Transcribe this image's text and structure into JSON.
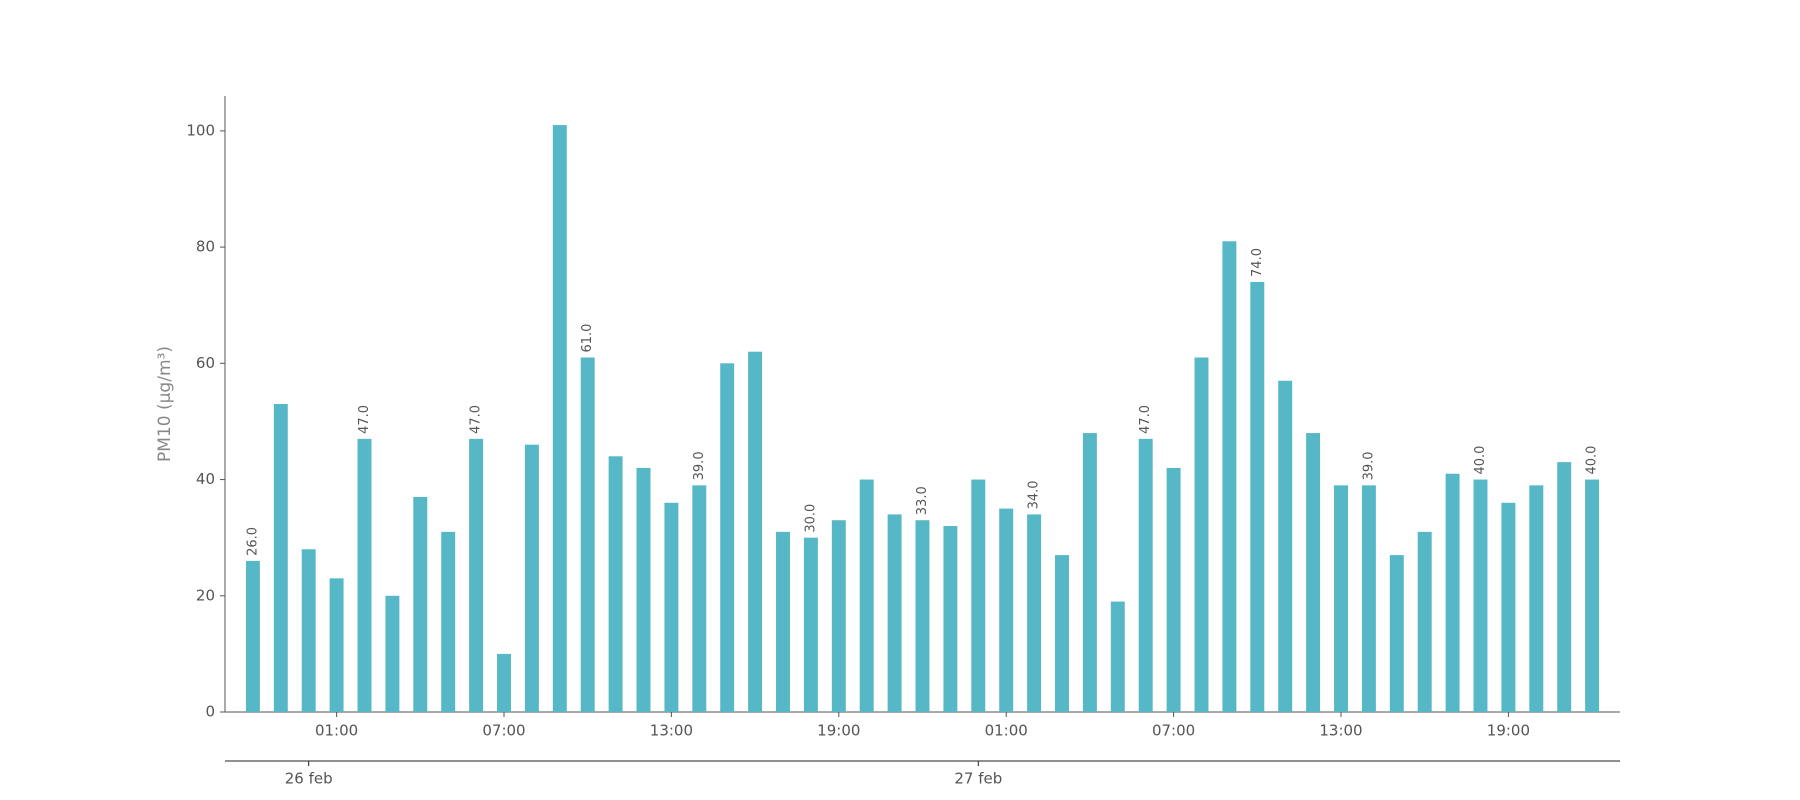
{
  "chart_data": {
    "type": "bar",
    "y_label": "PM10 (μg/m³)",
    "categories": [
      null,
      null,
      null,
      "01:00",
      null,
      null,
      null,
      null,
      null,
      "07:00",
      null,
      null,
      null,
      null,
      null,
      "13:00",
      null,
      null,
      null,
      null,
      null,
      "19:00",
      null,
      null,
      null,
      null,
      null,
      "01:00",
      null,
      null,
      null,
      null,
      null,
      "07:00",
      null,
      null,
      null,
      null,
      null,
      "13:00",
      null,
      null,
      null,
      null,
      null,
      "19:00",
      null,
      null,
      null
    ],
    "x_groups": [
      {
        "label": "26 feb",
        "at": 2
      },
      {
        "label": "27 feb",
        "at": 26
      }
    ],
    "values": [
      26,
      53,
      28,
      23,
      47,
      20,
      37,
      31,
      47,
      10,
      46,
      101,
      61,
      44,
      42,
      36,
      39,
      60,
      62,
      31,
      30,
      33,
      40,
      34,
      33,
      32,
      40,
      35,
      34,
      27,
      48,
      19,
      47,
      42,
      61,
      81,
      74,
      57,
      48,
      39,
      39,
      27,
      31,
      41,
      40,
      36,
      39,
      43,
      40
    ],
    "value_labels": [
      "26.0",
      null,
      null,
      null,
      "47.0",
      null,
      null,
      null,
      "47.0",
      null,
      null,
      null,
      "61.0",
      null,
      null,
      null,
      "39.0",
      null,
      null,
      null,
      "30.0",
      null,
      null,
      null,
      "33.0",
      null,
      null,
      null,
      "34.0",
      null,
      null,
      null,
      "47.0",
      null,
      null,
      null,
      "74.0",
      null,
      null,
      null,
      "39.0",
      null,
      null,
      null,
      "40.0",
      null,
      null,
      null,
      "40.0"
    ],
    "color": "#56b7c6",
    "ylim": [
      0,
      106
    ],
    "yticks": [
      0,
      20,
      40,
      60,
      80,
      100
    ],
    "grid": false
  }
}
